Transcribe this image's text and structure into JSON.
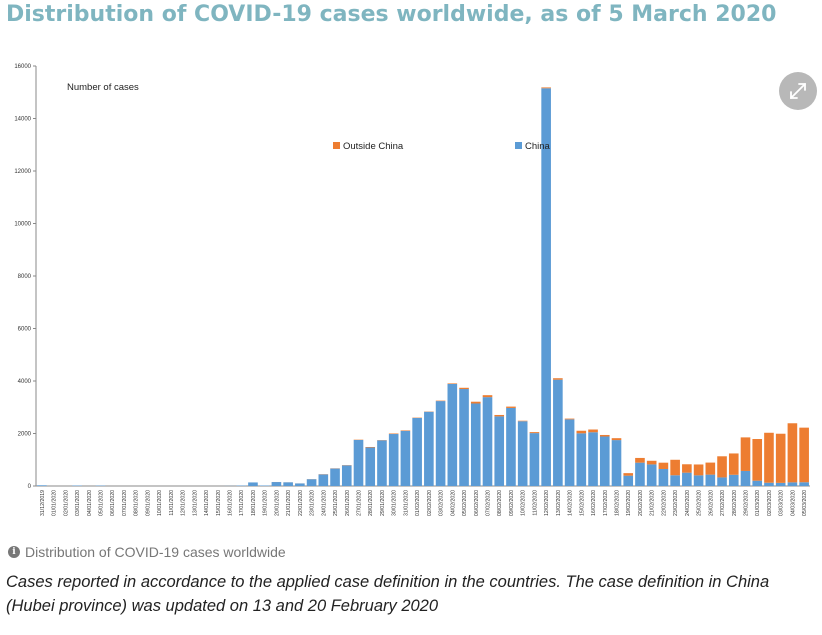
{
  "title": "Distribution of COVID-19 cases worldwide, as of 5 March 2020",
  "caption": {
    "heading": "Distribution of COVID-19 cases worldwide",
    "body": "Cases reported in accordance to the applied case definition in the countries. The case definition in China (Hubei province) was updated on 13 and 20 February 2020"
  },
  "colors": {
    "china": "#5b9bd5",
    "outside": "#ed7d31",
    "title": "#7fb5c0"
  },
  "chart_data": {
    "type": "bar",
    "stacked": true,
    "ylabel": "Number of cases",
    "ylim": [
      0,
      16000
    ],
    "yticks": [
      0,
      2000,
      4000,
      6000,
      8000,
      10000,
      12000,
      14000,
      16000
    ],
    "legend": [
      "Outside China",
      "China"
    ],
    "categories": [
      "31/12/2019",
      "01/01/2020",
      "02/01/2020",
      "03/01/2020",
      "04/01/2020",
      "05/01/2020",
      "06/01/2020",
      "07/01/2020",
      "08/01/2020",
      "09/01/2020",
      "10/01/2020",
      "11/01/2020",
      "12/01/2020",
      "13/01/2020",
      "14/01/2020",
      "15/01/2020",
      "16/01/2020",
      "17/01/2020",
      "18/01/2020",
      "19/01/2020",
      "20/01/2020",
      "21/01/2020",
      "22/01/2020",
      "23/01/2020",
      "24/01/2020",
      "25/01/2020",
      "26/01/2020",
      "27/01/2020",
      "28/01/2020",
      "29/01/2020",
      "30/01/2020",
      "31/01/2020",
      "01/02/2020",
      "02/02/2020",
      "03/02/2020",
      "04/02/2020",
      "05/02/2020",
      "06/02/2020",
      "07/02/2020",
      "08/02/2020",
      "09/02/2020",
      "10/02/2020",
      "11/02/2020",
      "12/02/2020",
      "13/02/2020",
      "14/02/2020",
      "15/02/2020",
      "16/02/2020",
      "17/02/2020",
      "18/02/2020",
      "19/02/2020",
      "20/02/2020",
      "21/02/2020",
      "22/02/2020",
      "23/02/2020",
      "24/02/2020",
      "25/02/2020",
      "26/02/2020",
      "27/02/2020",
      "28/02/2020",
      "29/02/2020",
      "01/03/2020",
      "02/03/2020",
      "03/03/2020",
      "04/03/2020",
      "05/03/2020"
    ],
    "series": [
      {
        "name": "China",
        "values": [
          27,
          0,
          0,
          17,
          0,
          15,
          0,
          0,
          0,
          0,
          0,
          0,
          0,
          0,
          0,
          0,
          4,
          17,
          136,
          19,
          151,
          140,
          97,
          259,
          441,
          665,
          787,
          1753,
          1466,
          1740,
          1980,
          2101,
          2590,
          2829,
          3235,
          3887,
          3694,
          3143,
          3385,
          2652,
          2973,
          2467,
          2015,
          15152,
          4050,
          2538,
          2007,
          2048,
          1886,
          1749,
          394,
          889,
          823,
          648,
          409,
          508,
          406,
          433,
          327,
          427,
          573,
          202,
          125,
          119,
          139,
          143
        ]
      },
      {
        "name": "Outside China",
        "values": [
          0,
          0,
          0,
          0,
          0,
          0,
          0,
          0,
          0,
          0,
          0,
          0,
          0,
          0,
          0,
          0,
          0,
          0,
          0,
          0,
          2,
          2,
          2,
          4,
          9,
          8,
          10,
          12,
          20,
          10,
          20,
          19,
          14,
          10,
          17,
          22,
          48,
          68,
          75,
          54,
          52,
          20,
          38,
          32,
          56,
          30,
          98,
          104,
          58,
          73,
          96,
          180,
          138,
          240,
          590,
          320,
          414,
          459,
          805,
          813,
          1279,
          1588,
          1903,
          1872,
          2251,
          2080
        ]
      }
    ]
  }
}
